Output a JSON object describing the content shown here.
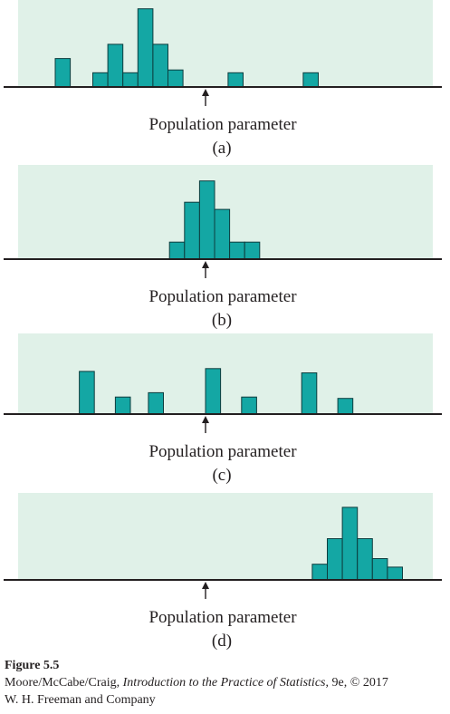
{
  "colors": {
    "panel_background": "#e0f1e8",
    "bar_fill": "#14a7a4",
    "bar_stroke": "#0d3d3e",
    "axis": "#231f20"
  },
  "chart_data": [
    {
      "type": "bar",
      "panel": "(a)",
      "marker_label": "Population parameter",
      "bin_width": 1,
      "parameter_position": 10,
      "x_range": [
        -3,
        26
      ],
      "ylim": [
        0,
        6
      ],
      "bins": [
        {
          "x": 0,
          "value": 2
        },
        {
          "x": 2.5,
          "value": 1
        },
        {
          "x": 3.5,
          "value": 3
        },
        {
          "x": 4.5,
          "value": 1
        },
        {
          "x": 5.5,
          "value": 5.5
        },
        {
          "x": 6.5,
          "value": 3
        },
        {
          "x": 7.5,
          "value": 1.2
        },
        {
          "x": 11.5,
          "value": 1
        },
        {
          "x": 16.5,
          "value": 1
        }
      ]
    },
    {
      "type": "bar",
      "panel": "(b)",
      "marker_label": "Population parameter",
      "bin_width": 1,
      "parameter_position": 10,
      "x_range": [
        -3,
        26
      ],
      "ylim": [
        0,
        6
      ],
      "bins": [
        {
          "x": 7.6,
          "value": 1.2
        },
        {
          "x": 8.6,
          "value": 4
        },
        {
          "x": 9.6,
          "value": 5.5
        },
        {
          "x": 10.6,
          "value": 3.5
        },
        {
          "x": 11.6,
          "value": 1.2
        },
        {
          "x": 12.6,
          "value": 1.2
        }
      ]
    },
    {
      "type": "bar",
      "panel": "(c)",
      "marker_label": "Population parameter",
      "bin_width": 1,
      "parameter_position": 10,
      "x_range": [
        -3,
        26
      ],
      "ylim": [
        0,
        6
      ],
      "bins": [
        {
          "x": 1.6,
          "value": 3
        },
        {
          "x": 4.0,
          "value": 1.2
        },
        {
          "x": 6.2,
          "value": 1.5
        },
        {
          "x": 10.0,
          "value": 3.2
        },
        {
          "x": 12.4,
          "value": 1.2
        },
        {
          "x": 16.4,
          "value": 2.9
        },
        {
          "x": 18.8,
          "value": 1.1
        }
      ]
    },
    {
      "type": "bar",
      "panel": "(d)",
      "marker_label": "Population parameter",
      "bin_width": 1,
      "parameter_position": 10,
      "x_range": [
        -3,
        26
      ],
      "ylim": [
        0,
        6
      ],
      "bins": [
        {
          "x": 17.1,
          "value": 1.1
        },
        {
          "x": 18.1,
          "value": 2.9
        },
        {
          "x": 19.1,
          "value": 5.1
        },
        {
          "x": 20.1,
          "value": 2.9
        },
        {
          "x": 21.1,
          "value": 1.5
        },
        {
          "x": 22.1,
          "value": 0.9
        }
      ]
    }
  ],
  "caption": {
    "title": "Figure 5.5",
    "authors": "Moore/McCabe/Craig, ",
    "book_title": "Introduction to the Practice of Statistics",
    "edition": ", 9e, © 2017",
    "publisher": "W. H. Freeman and Company"
  }
}
